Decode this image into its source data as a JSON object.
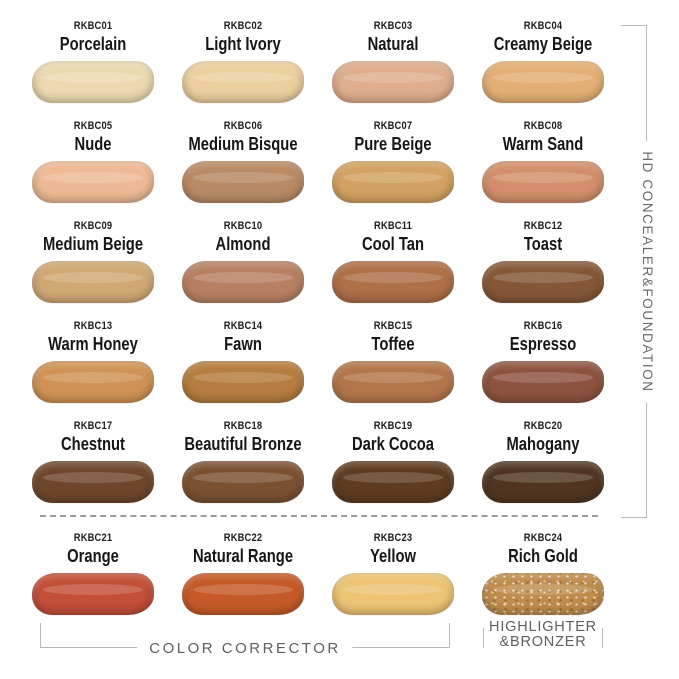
{
  "canvas": {
    "background": "#ffffff",
    "bracket_line_color": "#b9b9b9",
    "group_label_color": "#5f5f5f",
    "text_color": "#1d1d1d"
  },
  "side_group": {
    "label": "HD CONCEALER&FOUNDATION"
  },
  "bottom_groups": {
    "color_corrector": "COLOR CORRECTOR",
    "highlighter_line1": "HIGHLIGHTER",
    "highlighter_line2": "&BRONZER"
  },
  "shades": [
    {
      "code": "RKBC01",
      "name": "Porcelain",
      "color": "#ECD9B0"
    },
    {
      "code": "RKBC02",
      "name": "Light Ivory",
      "color": "#EBCF9E"
    },
    {
      "code": "RKBC03",
      "name": "Natural",
      "color": "#DFAE8C"
    },
    {
      "code": "RKBC04",
      "name": "Creamy Beige",
      "color": "#E3AF74"
    },
    {
      "code": "RKBC05",
      "name": "Nude",
      "color": "#EDBA95"
    },
    {
      "code": "RKBC06",
      "name": "Medium Bisque",
      "color": "#B98A64"
    },
    {
      "code": "RKBC07",
      "name": "Pure Beige",
      "color": "#D2A262"
    },
    {
      "code": "RKBC08",
      "name": "Warm Sand",
      "color": "#D38F6C"
    },
    {
      "code": "RKBC09",
      "name": "Medium Beige",
      "color": "#D1A873"
    },
    {
      "code": "RKBC10",
      "name": "Almond",
      "color": "#B88062"
    },
    {
      "code": "RKBC11",
      "name": "Cool Tan",
      "color": "#AF6F48"
    },
    {
      "code": "RKBC12",
      "name": "Toast",
      "color": "#855737"
    },
    {
      "code": "RKBC13",
      "name": "Warm Honey",
      "color": "#D09355"
    },
    {
      "code": "RKBC14",
      "name": "Fawn",
      "color": "#B57D3F"
    },
    {
      "code": "RKBC15",
      "name": "Toffee",
      "color": "#B3764A"
    },
    {
      "code": "RKBC16",
      "name": "Espresso",
      "color": "#8D5340"
    },
    {
      "code": "RKBC17",
      "name": "Chestnut",
      "color": "#6F462C"
    },
    {
      "code": "RKBC18",
      "name": "Beautiful Bronze",
      "color": "#7B5132"
    },
    {
      "code": "RKBC19",
      "name": "Dark Cocoa",
      "color": "#5E3C21"
    },
    {
      "code": "RKBC20",
      "name": "Mahogany",
      "color": "#503621"
    },
    {
      "code": "RKBC21",
      "name": "Orange",
      "color": "#C24F38"
    },
    {
      "code": "RKBC22",
      "name": "Natural Range",
      "color": "#C55A28"
    },
    {
      "code": "RKBC23",
      "name": "Yellow",
      "color": "#EDC374"
    },
    {
      "code": "RKBC24",
      "name": "Rich Gold",
      "color": "#BE8C4D"
    }
  ]
}
